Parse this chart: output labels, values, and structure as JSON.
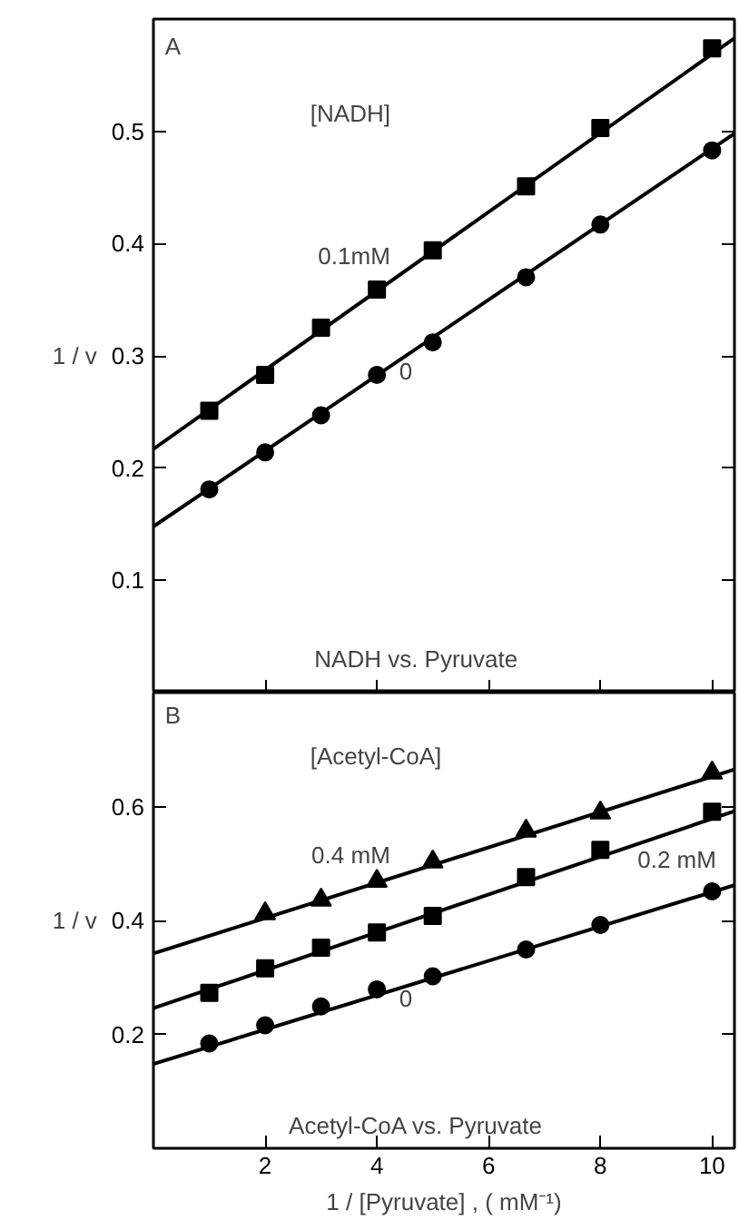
{
  "chart_data": [
    {
      "type": "scatter",
      "title": "A",
      "ylabel": "1 / v",
      "xlim": [
        0,
        10.4
      ],
      "ylim": [
        0,
        0.6
      ],
      "xticks": [
        {
          "value": 2,
          "label": null
        },
        {
          "value": 4,
          "label": null
        },
        {
          "value": 6,
          "label": null
        },
        {
          "value": 8,
          "label": null
        },
        {
          "value": 10,
          "label": null
        }
      ],
      "yticks": [
        0.1,
        0.2,
        0.3,
        0.4,
        0.5
      ],
      "tick_labels": "y",
      "grid": false,
      "annotations": [
        "[NADH]",
        "NADH vs. Pyruvate"
      ],
      "series": [
        {
          "marker": "square",
          "color": "#000000",
          "x": [
            1,
            2,
            3,
            4,
            5,
            6.67,
            8,
            10
          ],
          "values": [
            0.251,
            0.283,
            0.325,
            0.359,
            0.394,
            0.451,
            0.503,
            0.574
          ]
        },
        {
          "marker": "circle",
          "color": "#000000",
          "x": [
            1,
            2,
            3,
            4,
            5,
            6.67,
            8,
            10
          ],
          "values": [
            0.181,
            0.214,
            0.247,
            0.283,
            0.312,
            0.37,
            0.417,
            0.483
          ]
        },
        {
          "type": "line",
          "name": "0.1mM",
          "color": "#000000",
          "x": [
            0,
            10.4
          ],
          "values": [
            0.217,
            0.583
          ]
        },
        {
          "type": "line",
          "name": "0",
          "color": "#000000",
          "x": [
            0,
            10.4
          ],
          "values": [
            0.148,
            0.498
          ]
        }
      ]
    },
    {
      "type": "scatter",
      "title": "B",
      "ylabel": "1 / v",
      "xlabel": "1 / [Pyruvate] , ( mM⁻¹)",
      "xlim": [
        0,
        10.4
      ],
      "ylim": [
        0,
        0.8
      ],
      "xticks": [
        2,
        4,
        6,
        8,
        10
      ],
      "yticks": [
        0.2,
        0.4,
        0.6
      ],
      "grid": false,
      "annotations": [
        "[Acetyl-CoA]",
        "Acetyl-CoA vs. Pyruvate"
      ],
      "series": [
        {
          "marker": "triangle",
          "color": "#000000",
          "x": [
            2,
            3,
            4,
            5,
            6.67,
            8,
            10
          ],
          "values": [
            0.412,
            0.436,
            0.469,
            0.503,
            0.557,
            0.589,
            0.659
          ]
        },
        {
          "marker": "square",
          "color": "#000000",
          "x": [
            1,
            2,
            3,
            4,
            5,
            6.67,
            8,
            10
          ],
          "values": [
            0.273,
            0.316,
            0.352,
            0.379,
            0.408,
            0.476,
            0.524,
            0.591
          ]
        },
        {
          "marker": "circle",
          "color": "#000000",
          "x": [
            1,
            2,
            3,
            4,
            5,
            6.67,
            8,
            10
          ],
          "values": [
            0.184,
            0.216,
            0.249,
            0.279,
            0.302,
            0.349,
            0.392,
            0.451
          ]
        },
        {
          "type": "line",
          "name": "0.4 mM",
          "color": "#000000",
          "x": [
            0,
            10.4
          ],
          "values": [
            0.342,
            0.665
          ]
        },
        {
          "type": "line",
          "name": "0.2 mM",
          "color": "#000000",
          "x": [
            0,
            10.4
          ],
          "values": [
            0.246,
            0.592
          ]
        },
        {
          "type": "line",
          "name": "0",
          "color": "#000000",
          "x": [
            0,
            10.4
          ],
          "values": [
            0.148,
            0.462
          ]
        }
      ]
    }
  ]
}
